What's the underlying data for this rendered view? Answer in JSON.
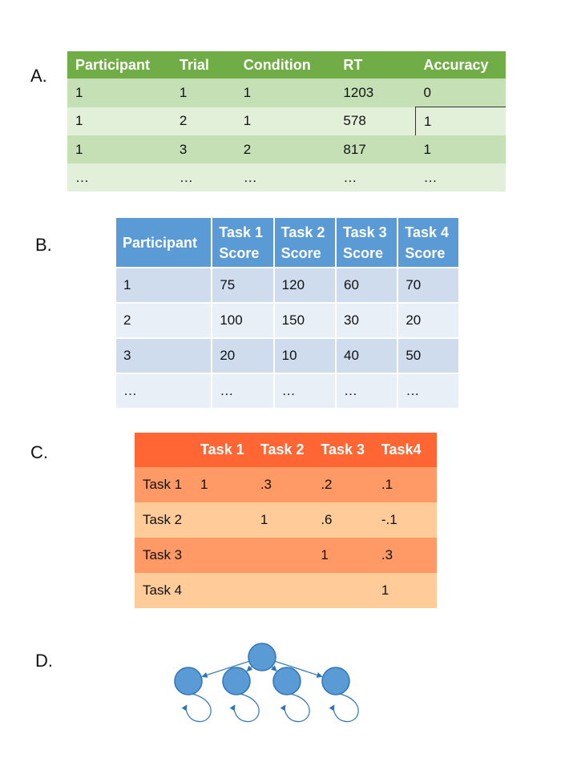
{
  "labels": {
    "a": "A.",
    "b": "B.",
    "c": "C.",
    "d": "D."
  },
  "table_a": {
    "headers": [
      "Participant",
      "Trial",
      "Condition",
      "RT",
      "Accuracy"
    ],
    "rows": [
      [
        "1",
        "1",
        "1",
        "1203",
        "0"
      ],
      [
        "1",
        "2",
        "1",
        "578",
        "1"
      ],
      [
        "1",
        "3",
        "2",
        "817",
        "1"
      ],
      [
        "…",
        "…",
        "…",
        "…",
        "…"
      ]
    ]
  },
  "table_b": {
    "headers": [
      "Participant",
      "Task 1\nScore",
      "Task 2\nScore",
      "Task 3\nScore",
      "Task 4\nScore"
    ],
    "rows": [
      [
        "1",
        "75",
        "120",
        "60",
        "70"
      ],
      [
        "2",
        "100",
        "150",
        "30",
        "20"
      ],
      [
        "3",
        "20",
        "10",
        "40",
        "50"
      ],
      [
        "…",
        "…",
        "…",
        "…",
        "…"
      ]
    ]
  },
  "table_c": {
    "headers": [
      "",
      "Task 1",
      "Task 2",
      "Task 3",
      "Task4"
    ],
    "rows": [
      [
        "Task 1",
        "1",
        ".3",
        ".2",
        ".1"
      ],
      [
        "Task 2",
        "",
        "1",
        ".6",
        "-.1"
      ],
      [
        "Task 3",
        "",
        "",
        "1",
        ".3"
      ],
      [
        "Task 4",
        "",
        "",
        "",
        "1"
      ]
    ]
  },
  "diagram": {
    "node_color": "#5b9bd5",
    "edge_color": "#2e75b6",
    "root_node": "general-factor",
    "child_nodes": [
      "task-1",
      "task-2",
      "task-3",
      "task-4"
    ]
  }
}
